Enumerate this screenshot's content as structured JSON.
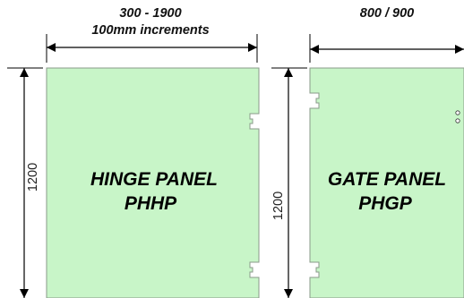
{
  "diagram": {
    "colors": {
      "panel_fill": "#c8f5c8",
      "panel_stroke": "#8a9a8a",
      "line": "#000000"
    },
    "hinge_panel": {
      "width_label": "300 - 1900",
      "increment_label": "100mm increments",
      "height_label": "1200",
      "name_line1": "HINGE  PANEL",
      "name_line2": "PHHP"
    },
    "gate_panel": {
      "width_label": "800 / 900",
      "height_label": "1200",
      "name_line1": "GATE PANEL",
      "name_line2": "PHGP"
    }
  }
}
